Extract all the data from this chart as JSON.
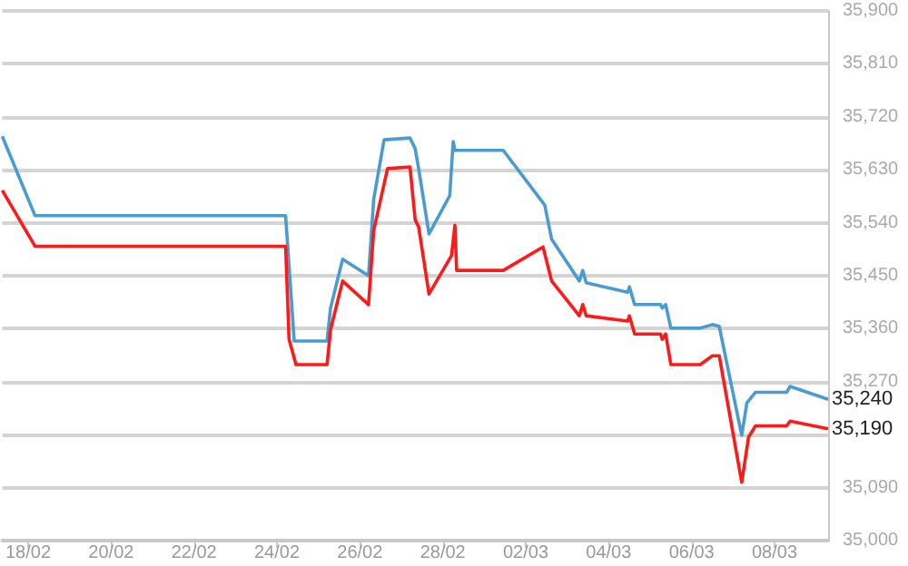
{
  "chart_data": {
    "type": "line",
    "xlim": [
      "--02-17T09:00",
      "--03-09T07:00"
    ],
    "xticks": [
      {
        "value": "--02-18",
        "label": "18/02"
      },
      {
        "value": "--02-20",
        "label": "20/02"
      },
      {
        "value": "--02-22",
        "label": "22/02"
      },
      {
        "value": "--02-24",
        "label": "24/02"
      },
      {
        "value": "--02-26",
        "label": "26/02"
      },
      {
        "value": "--02-28",
        "label": "28/02"
      },
      {
        "value": "--03-02",
        "label": "02/03"
      },
      {
        "value": "--03-04",
        "label": "04/03"
      },
      {
        "value": "--03-06",
        "label": "06/03"
      },
      {
        "value": "--03-08",
        "label": "08/03"
      }
    ],
    "ylim": [
      35000,
      35900
    ],
    "yticks": [
      {
        "value": 35000,
        "label": "35,000"
      },
      {
        "value": 35090,
        "label": "35,090"
      },
      {
        "value": 35180,
        "label": null
      },
      {
        "value": 35270,
        "label": "35,270"
      },
      {
        "value": 35360,
        "label": "35,360"
      },
      {
        "value": 35450,
        "label": "35,450"
      },
      {
        "value": 35540,
        "label": "35,540"
      },
      {
        "value": 35630,
        "label": "35,630"
      },
      {
        "value": 35720,
        "label": "35,720"
      },
      {
        "value": 35810,
        "label": "35,810"
      },
      {
        "value": 35900,
        "label": "35,900"
      }
    ],
    "grid": "y",
    "marker": "none",
    "line_style": "solid",
    "series": [
      {
        "color": "#4a9bd0",
        "x": [
          "--02-17T09:00",
          "--02-18T04:00",
          "--02-24T05:00",
          "--02-24T10:00",
          "--02-25T05:00",
          "--02-25T07:00",
          "--02-25T14:00",
          "--02-26T05:00",
          "--02-26T08:00",
          "--02-26T14:00",
          "--02-27T05:00",
          "--02-27T08:00",
          "--02-27T10:00",
          "--02-27T16:00",
          "--02-28T04:00",
          "--02-28T06:00",
          "--02-28T07:00",
          "--03-01T11:00",
          "--03-02T11:00",
          "--03-02T15:00",
          "--03-03T07:00",
          "--03-03T09:00",
          "--03-03T11:00",
          "--03-04T11:00",
          "--03-04T12:00",
          "--03-04T15:00",
          "--03-05T06:00",
          "--03-05T07:00",
          "--03-05T09:00",
          "--03-05T12:00",
          "--03-06T05:00",
          "--03-06T12:00",
          "--03-06T16:00",
          "--03-07T05:00",
          "--03-07T08:00",
          "--03-07T13:00",
          "--03-08T07:00",
          "--03-08T09:00",
          "--03-09T07:00"
        ],
        "values": [
          35687,
          35552,
          35552,
          35339,
          35339,
          35395,
          35478,
          35450,
          35580,
          35681,
          35684,
          35666,
          35632,
          35521,
          35586,
          35678,
          35663,
          35663,
          35570,
          35512,
          35441,
          35459,
          35438,
          35422,
          35431,
          35401,
          35401,
          35395,
          35401,
          35361,
          35361,
          35367,
          35364,
          35179,
          35234,
          35252,
          35252,
          35262,
          35240
        ],
        "value_labels": [
          null,
          null,
          null,
          null,
          null,
          null,
          null,
          null,
          null,
          null,
          null,
          null,
          null,
          null,
          null,
          null,
          null,
          null,
          null,
          null,
          null,
          null,
          null,
          null,
          null,
          null,
          null,
          null,
          null,
          null,
          null,
          null,
          null,
          null,
          null,
          null,
          null,
          null,
          "35,240"
        ]
      },
      {
        "color": "#ff1a1a",
        "x": [
          "--02-17T09:00",
          "--02-18T04:00",
          "--02-24T05:00",
          "--02-24T07:00",
          "--02-24T11:00",
          "--02-25T05:00",
          "--02-25T07:00",
          "--02-25T14:00",
          "--02-26T05:00",
          "--02-26T08:00",
          "--02-26T16:00",
          "--02-27T05:00",
          "--02-27T08:00",
          "--02-27T10:00",
          "--02-27T16:00",
          "--02-28T05:00",
          "--02-28T07:00",
          "--02-28T08:00",
          "--03-01T11:00",
          "--03-02T10:00",
          "--03-02T15:00",
          "--03-03T07:00",
          "--03-03T09:00",
          "--03-03T11:00",
          "--03-04T11:00",
          "--03-04T12:00",
          "--03-04T15:00",
          "--03-05T06:00",
          "--03-05T07:00",
          "--03-05T09:00",
          "--03-05T12:00",
          "--03-06T05:00",
          "--03-06T12:00",
          "--03-06T16:00",
          "--03-07T05:00",
          "--03-07T09:00",
          "--03-07T13:00",
          "--03-08T07:00",
          "--03-08T09:00",
          "--03-09T07:00"
        ],
        "values": [
          35595,
          35500,
          35500,
          35342,
          35299,
          35299,
          35358,
          35441,
          35401,
          35527,
          35632,
          35635,
          35545,
          35533,
          35419,
          35484,
          35536,
          35459,
          35459,
          35499,
          35441,
          35382,
          35401,
          35382,
          35373,
          35382,
          35351,
          35351,
          35342,
          35351,
          35299,
          35299,
          35314,
          35314,
          35099,
          35176,
          35195,
          35195,
          35203,
          35190
        ],
        "value_labels": [
          null,
          null,
          null,
          null,
          null,
          null,
          null,
          null,
          null,
          null,
          null,
          null,
          null,
          null,
          null,
          null,
          null,
          null,
          null,
          null,
          null,
          null,
          null,
          null,
          null,
          null,
          null,
          null,
          null,
          null,
          null,
          null,
          null,
          null,
          null,
          null,
          null,
          null,
          null,
          "35,190"
        ]
      }
    ]
  }
}
